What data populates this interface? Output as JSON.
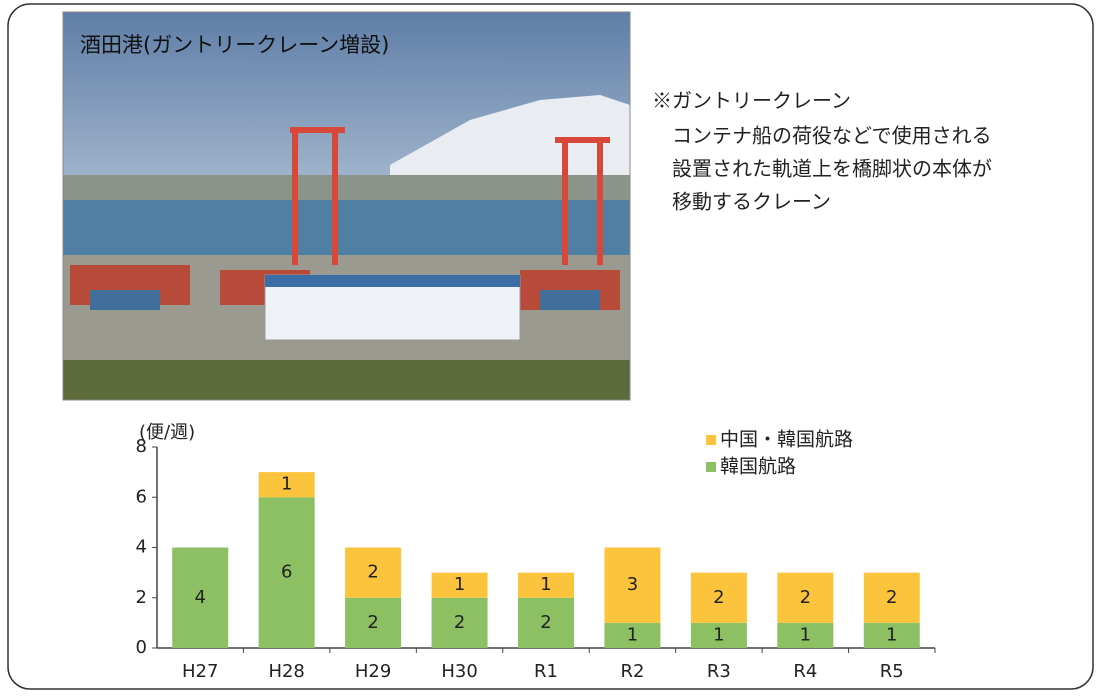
{
  "photo": {
    "caption": "酒田港(ガントリークレーン増設)"
  },
  "note": {
    "title": "※ガントリークレーン",
    "lines": [
      "コンテナ船の荷役などで使用される",
      "設置された軌道上を橋脚状の本体が",
      "移動するクレーン"
    ]
  },
  "chart_data": {
    "type": "stacked_bar",
    "y_label": "(便/週)",
    "categories": [
      "H27",
      "H28",
      "H29",
      "H30",
      "R1",
      "R2",
      "R3",
      "R4",
      "R5"
    ],
    "series": [
      {
        "name": "韓国航路",
        "color": "#8cc063",
        "values": [
          4,
          6,
          2,
          2,
          2,
          1,
          1,
          1,
          1
        ]
      },
      {
        "name": "中国・韓国航路",
        "color": "#fcc43c",
        "values": [
          null,
          1,
          2,
          1,
          1,
          3,
          2,
          2,
          2
        ]
      }
    ],
    "ylim": [
      0,
      8
    ],
    "yticks": [
      0,
      2,
      4,
      6,
      8
    ],
    "grid": false,
    "legend": "upper right"
  }
}
